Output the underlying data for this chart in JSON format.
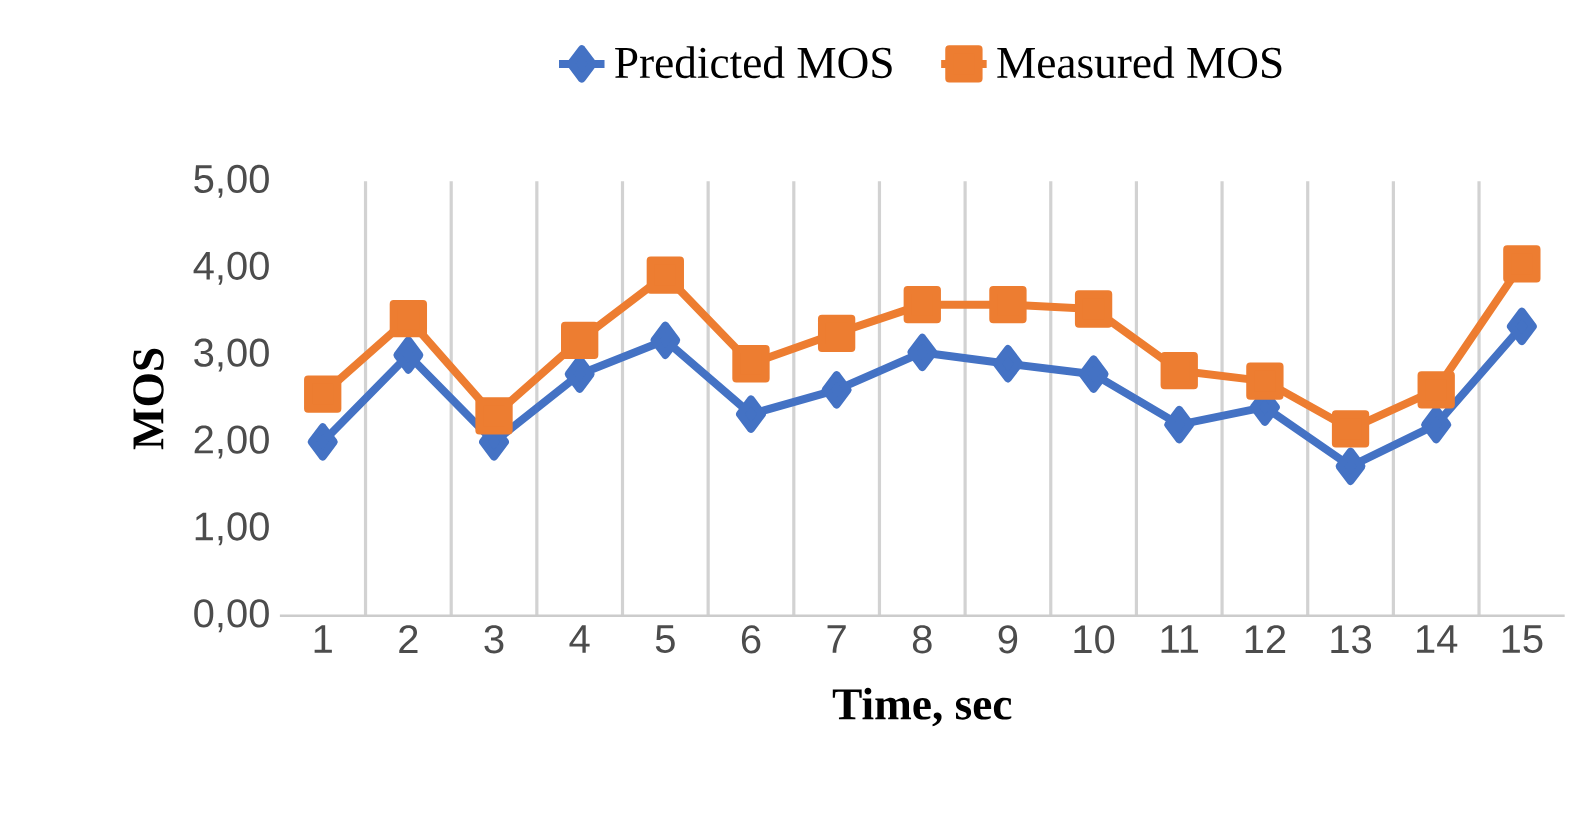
{
  "chart_data": {
    "type": "line",
    "xlabel": "Time, sec",
    "ylabel": "MOS",
    "categories": [
      "1",
      "2",
      "3",
      "4",
      "5",
      "6",
      "7",
      "8",
      "9",
      "10",
      "11",
      "12",
      "13",
      "14",
      "15"
    ],
    "series": [
      {
        "name": "Predicted MOS",
        "color": "#4472c4",
        "marker": "diamond",
        "values": [
          2.0,
          3.0,
          2.0,
          2.78,
          3.17,
          2.32,
          2.6,
          3.03,
          2.9,
          2.78,
          2.2,
          2.4,
          1.72,
          2.2,
          3.33
        ]
      },
      {
        "name": "Measured MOS",
        "color": "#ed7d31",
        "marker": "square",
        "values": [
          2.55,
          3.42,
          2.3,
          3.17,
          3.92,
          2.9,
          3.25,
          3.58,
          3.58,
          3.53,
          2.82,
          2.7,
          2.15,
          2.6,
          4.05
        ]
      }
    ],
    "ylim": [
      0,
      5
    ],
    "yticks": [
      {
        "value": 0,
        "label": "0,00"
      },
      {
        "value": 1,
        "label": "1,00"
      },
      {
        "value": 2,
        "label": "2,00"
      },
      {
        "value": 3,
        "label": "3,00"
      },
      {
        "value": 4,
        "label": "4,00"
      },
      {
        "value": 5,
        "label": "5,00"
      }
    ],
    "grid": "x",
    "legend": "top",
    "line_style": "solid"
  }
}
